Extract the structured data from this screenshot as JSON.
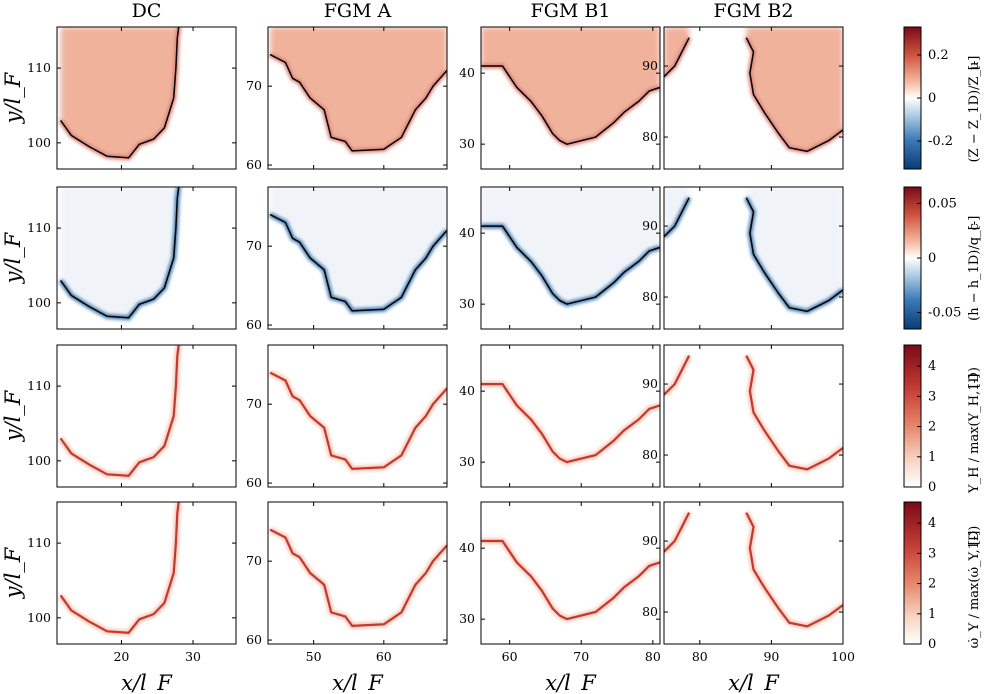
{
  "chart_data": {
    "type": "heatmap",
    "column_titles": [
      "DC",
      "FGM A",
      "FGM B1",
      "FGM B2"
    ],
    "xlabel": "x/l_F",
    "ylabel": "y/l_F",
    "colormap": "diverging blue-white-red",
    "colors": {
      "neg": "#0b3d76",
      "mid": "#ffffff",
      "pos": "#7a0a17",
      "contour": "#000000"
    },
    "columns": [
      {
        "title": "DC",
        "xlim": [
          11,
          36
        ],
        "xticks": [
          20,
          30
        ],
        "ylim": [
          96.5,
          115.5
        ],
        "yticks": [
          100,
          110
        ]
      },
      {
        "title": "FGM A",
        "xlim": [
          43.5,
          69
        ],
        "xticks": [
          50,
          60
        ],
        "ylim": [
          59.5,
          77.5
        ],
        "yticks": [
          60,
          70
        ]
      },
      {
        "title": "FGM B1",
        "xlim": [
          56,
          81
        ],
        "xticks": [
          60,
          70,
          80
        ],
        "ylim": [
          26.5,
          46.5
        ],
        "yticks": [
          30,
          40
        ]
      },
      {
        "title": "FGM B2",
        "xlim": [
          75,
          100
        ],
        "xticks": [
          80,
          90,
          100
        ],
        "ylim": [
          75.5,
          95.5
        ],
        "yticks": [
          80,
          90
        ]
      }
    ],
    "rows": [
      {
        "variable": "Z",
        "colorbar_label": "(Z − Z_1D)/Z_u",
        "unit": "[-]",
        "clim": [
          -0.33,
          0.33
        ],
        "ticks": [
          -0.2,
          0,
          0.2
        ],
        "tick_labels": [
          "-0.2",
          "0",
          "0.2"
        ],
        "diverging": true,
        "flame_contour": true
      },
      {
        "variable": "h",
        "colorbar_label": "(h − h_1D)/q_c",
        "unit": "[-]",
        "clim": [
          -0.065,
          0.065
        ],
        "ticks": [
          -0.05,
          0,
          0.05
        ],
        "tick_labels": [
          "-0.05",
          "0",
          "0.05"
        ],
        "diverging": true,
        "flame_contour": true
      },
      {
        "variable": "Y_H",
        "colorbar_label": "Y_H / max(Y_H,1D)",
        "unit": "[-]",
        "clim": [
          0,
          4.7
        ],
        "ticks": [
          0,
          1,
          2,
          3,
          4
        ],
        "tick_labels": [
          "0",
          "1",
          "2",
          "3",
          "4"
        ],
        "diverging": false,
        "flame_contour": false
      },
      {
        "variable": "omega_Y",
        "colorbar_label": "ω̇_Y / max(ω̇_Y,1D)",
        "unit": "[-]",
        "clim": [
          0,
          4.7
        ],
        "ticks": [
          0,
          1,
          2,
          3,
          4
        ],
        "tick_labels": [
          "0",
          "1",
          "2",
          "3",
          "4"
        ],
        "diverging": false,
        "flame_contour": false
      }
    ],
    "flame_fronts": [
      {
        "panel": "DC",
        "points": [
          [
            11.5,
            103
          ],
          [
            13,
            101
          ],
          [
            15.5,
            99.5
          ],
          [
            18,
            98.2
          ],
          [
            21,
            98
          ],
          [
            22.5,
            99.8
          ],
          [
            24.5,
            100.5
          ],
          [
            26,
            102
          ],
          [
            27.3,
            106
          ],
          [
            27.6,
            110
          ],
          [
            27.8,
            114
          ],
          [
            28,
            115.5
          ]
        ]
      },
      {
        "panel": "FGM A",
        "points": [
          [
            43.8,
            74
          ],
          [
            46,
            73
          ],
          [
            47,
            71
          ],
          [
            48,
            70.5
          ],
          [
            49.5,
            68.5
          ],
          [
            51.5,
            67
          ],
          [
            52.5,
            63.5
          ],
          [
            54.5,
            63
          ],
          [
            55.5,
            61.8
          ],
          [
            60,
            62
          ],
          [
            62.5,
            63.5
          ],
          [
            64.5,
            67
          ],
          [
            66,
            68.5
          ],
          [
            67,
            70
          ],
          [
            69,
            72
          ]
        ]
      },
      {
        "panel": "FGM B1",
        "points": [
          [
            56,
            41
          ],
          [
            59,
            41
          ],
          [
            61,
            38
          ],
          [
            63,
            36
          ],
          [
            64.5,
            34
          ],
          [
            66,
            31.5
          ],
          [
            67,
            30.5
          ],
          [
            68,
            30
          ],
          [
            72,
            31
          ],
          [
            74.5,
            33
          ],
          [
            76,
            34.5
          ],
          [
            78,
            36
          ],
          [
            79.5,
            37.5
          ],
          [
            81,
            38
          ]
        ]
      },
      {
        "panel": "FGM B2",
        "points": [
          [
            86.5,
            94
          ],
          [
            87.5,
            92
          ],
          [
            87,
            89
          ],
          [
            87.5,
            86
          ],
          [
            89,
            83.5
          ],
          [
            91,
            80.5
          ],
          [
            92.5,
            78.5
          ],
          [
            95,
            78
          ],
          [
            98,
            79.5
          ],
          [
            100,
            81
          ]
        ]
      },
      {
        "panel": "FGM B2 left",
        "points": [
          [
            75,
            88.5
          ],
          [
            76.5,
            90
          ],
          [
            77.5,
            92
          ],
          [
            78.5,
            94
          ]
        ]
      }
    ]
  }
}
